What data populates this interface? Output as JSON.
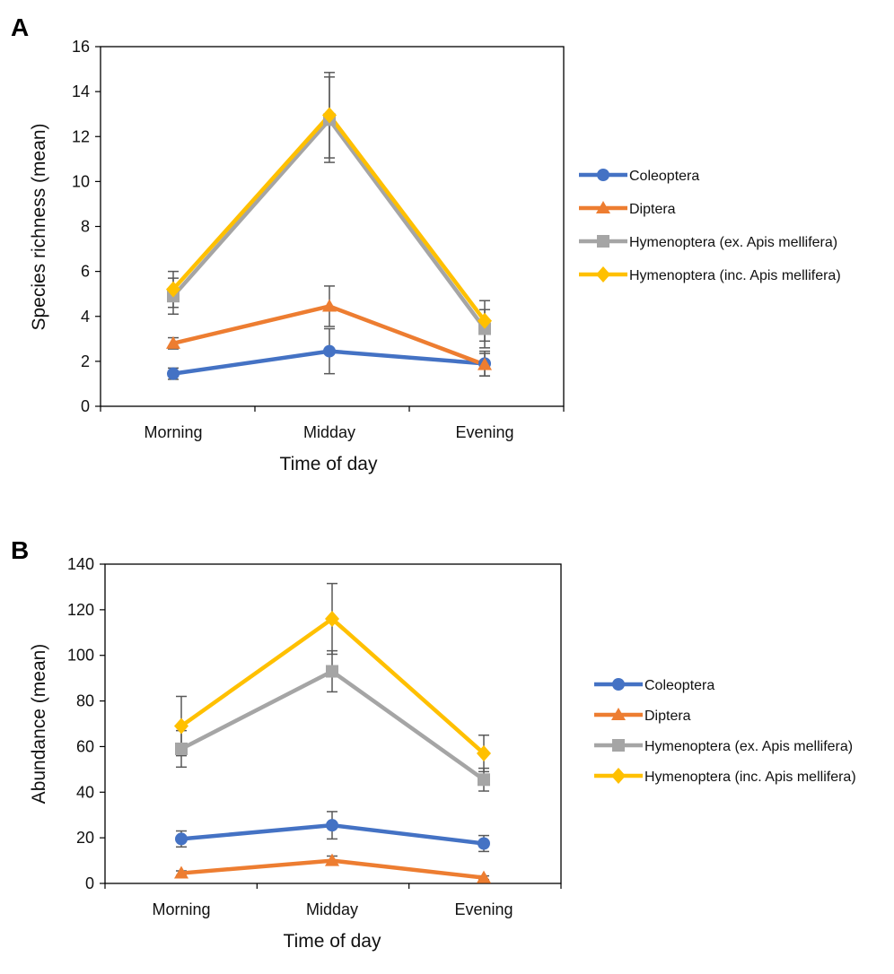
{
  "chart_data": [
    {
      "panel_label": "A",
      "type": "line",
      "xlabel": "Time of day",
      "ylabel": "Species richness (mean)",
      "categories": [
        "Morning",
        "Midday",
        "Evening"
      ],
      "ylim": [
        0,
        16
      ],
      "yticks": [
        0,
        2,
        4,
        6,
        8,
        10,
        12,
        14,
        16
      ],
      "legend_position": "right",
      "series": [
        {
          "name": "Coleoptera",
          "color": "#4472C4",
          "marker": "circle",
          "values": [
            1.45,
            2.45,
            1.9
          ],
          "errors": [
            0.25,
            1.0,
            0.55
          ]
        },
        {
          "name": "Diptera",
          "color": "#ED7D31",
          "marker": "triangle",
          "values": [
            2.8,
            4.45,
            1.85
          ],
          "errors": [
            0.25,
            0.9,
            0.5
          ]
        },
        {
          "name": "Hymenoptera (ex. Apis mellifera)",
          "color": "#A5A5A5",
          "marker": "square",
          "values": [
            4.9,
            12.75,
            3.45
          ],
          "errors": [
            0.8,
            1.9,
            0.85
          ]
        },
        {
          "name": "Hymenoptera (inc. Apis mellifera)",
          "color": "#FFC000",
          "marker": "diamond",
          "values": [
            5.2,
            12.95,
            3.8
          ],
          "errors": [
            0.8,
            1.9,
            0.9
          ]
        }
      ]
    },
    {
      "panel_label": "B",
      "type": "line",
      "xlabel": "Time of day",
      "ylabel": "Abundance (mean)",
      "categories": [
        "Morning",
        "Midday",
        "Evening"
      ],
      "ylim": [
        0,
        140
      ],
      "yticks": [
        0,
        20,
        40,
        60,
        80,
        100,
        120,
        140
      ],
      "legend_position": "right",
      "series": [
        {
          "name": "Coleoptera",
          "color": "#4472C4",
          "marker": "circle",
          "values": [
            19.5,
            25.5,
            17.5
          ],
          "errors": [
            3.5,
            6.0,
            3.5
          ]
        },
        {
          "name": "Diptera",
          "color": "#ED7D31",
          "marker": "triangle",
          "values": [
            4.5,
            10.0,
            2.5
          ],
          "errors": [
            1.0,
            2.0,
            0.8
          ]
        },
        {
          "name": "Hymenoptera (ex. Apis mellifera)",
          "color": "#A5A5A5",
          "marker": "square",
          "values": [
            59,
            93,
            45.5
          ],
          "errors": [
            8,
            9,
            5
          ]
        },
        {
          "name": "Hymenoptera (inc. Apis mellifera)",
          "color": "#FFC000",
          "marker": "diamond",
          "values": [
            69,
            116,
            57
          ],
          "errors": [
            13,
            15.5,
            8
          ]
        }
      ]
    }
  ]
}
